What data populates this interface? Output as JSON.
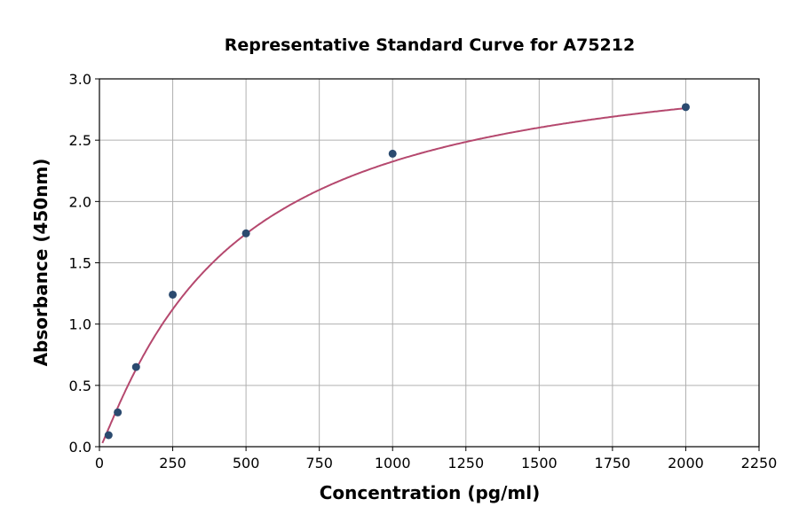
{
  "chart_data": {
    "type": "scatter",
    "title": "Representative Standard Curve for A75212",
    "xlabel": "Concentration (pg/ml)",
    "ylabel": "Absorbance (450nm)",
    "xlim": [
      0,
      2250
    ],
    "ylim": [
      0,
      3.0
    ],
    "xticks": [
      "0",
      "250",
      "500",
      "750",
      "1000",
      "1250",
      "1500",
      "1750",
      "2000",
      "2250"
    ],
    "yticks": [
      "0.0",
      "0.5",
      "1.0",
      "1.5",
      "2.0",
      "2.5",
      "3.0"
    ],
    "grid": true,
    "points": [
      {
        "x": 31.25,
        "y": 0.094
      },
      {
        "x": 62.5,
        "y": 0.28
      },
      {
        "x": 125,
        "y": 0.65
      },
      {
        "x": 250,
        "y": 1.24
      },
      {
        "x": 500,
        "y": 1.74
      },
      {
        "x": 1000,
        "y": 2.39
      },
      {
        "x": 2000,
        "y": 2.77
      }
    ],
    "fit": "4-parameter logistic curve",
    "colors": {
      "points": "#2b4a6f",
      "curve": "#b5486e",
      "grid": "#b0b0b0"
    }
  }
}
